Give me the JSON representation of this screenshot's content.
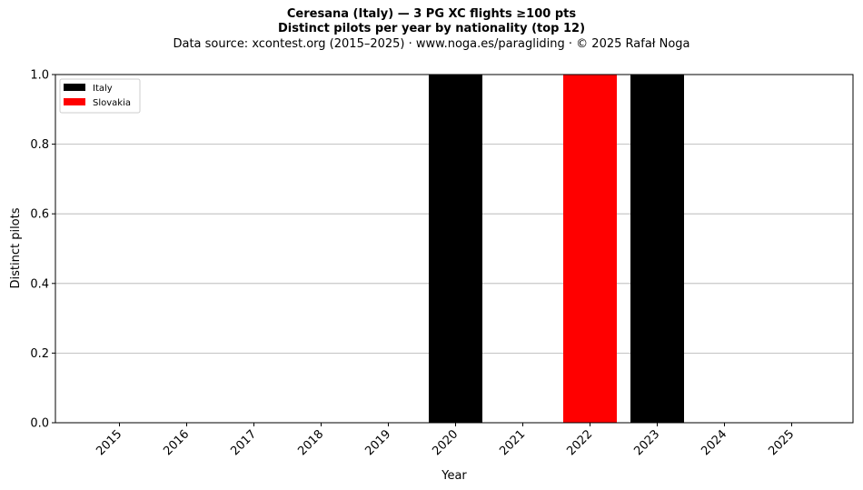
{
  "chart_data": {
    "type": "bar",
    "title_lines": [
      "Ceresana (Italy)  —  3 PG XC flights ≥100 pts",
      "Distinct pilots per year by nationality (top 12)"
    ],
    "subtitle": "Data source: xcontest.org (2015–2025)  ·  www.noga.es/paragliding  ·  © 2025 Rafał Noga",
    "xlabel": "Year",
    "ylabel": "Distinct pilots",
    "categories": [
      "2015",
      "2016",
      "2017",
      "2018",
      "2019",
      "2020",
      "2021",
      "2022",
      "2023",
      "2024",
      "2025"
    ],
    "yticks": [
      "0.0",
      "0.2",
      "0.4",
      "0.6",
      "0.8",
      "1.0"
    ],
    "ylim": [
      0,
      1
    ],
    "stacked": true,
    "grid": "horizontal",
    "legend_position": "top-left",
    "series": [
      {
        "name": "Italy",
        "color": "#000000",
        "values": [
          0,
          0,
          0,
          0,
          0,
          1,
          0,
          0,
          1,
          0,
          0
        ]
      },
      {
        "name": "Slovakia",
        "color": "#ff0000",
        "values": [
          0,
          0,
          0,
          0,
          0,
          0,
          0,
          1,
          0,
          0,
          0
        ]
      }
    ]
  }
}
